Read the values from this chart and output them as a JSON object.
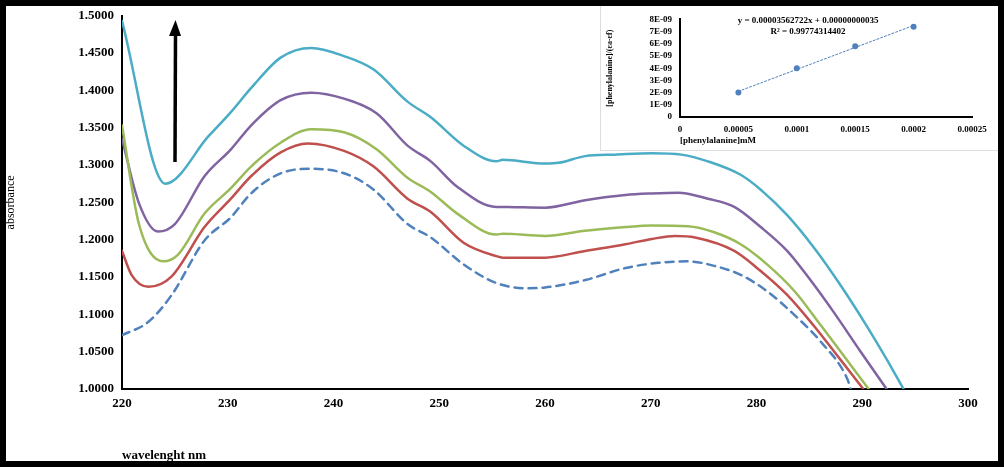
{
  "chart_data": [
    {
      "type": "line",
      "xlabel": "wavelenght nm",
      "ylabel": "absorbance",
      "xlim": [
        220,
        300
      ],
      "xticks": [
        220,
        230,
        240,
        250,
        260,
        270,
        280,
        290,
        300
      ],
      "ylim": [
        1.0,
        1.5
      ],
      "yticks": [
        {
          "value": 1.0,
          "label": "1.0000"
        },
        {
          "value": 1.05,
          "label": "1.0500"
        },
        {
          "value": 1.1,
          "label": "1.1000"
        },
        {
          "value": 1.15,
          "label": "1.1500"
        },
        {
          "value": 1.2,
          "label": "1.2000"
        },
        {
          "value": 1.25,
          "label": "1.2500"
        },
        {
          "value": 1.3,
          "label": "1.3000"
        },
        {
          "value": 1.35,
          "label": "1.3500"
        },
        {
          "value": 1.4,
          "label": "1.4000"
        },
        {
          "value": 1.45,
          "label": "1.4500"
        },
        {
          "value": 1.5,
          "label": "1.5000"
        }
      ],
      "marker": "none",
      "series": [
        {
          "color": "#4f81bd",
          "line_style": "dashed",
          "x": [
            220,
            222.5,
            224.7,
            227.8,
            230.3,
            232.2,
            235,
            237.9,
            241,
            243.8,
            247,
            249.2,
            252.3,
            255.4,
            258.2,
            260,
            263.8,
            267.6,
            270.7,
            273.5,
            276,
            278.5,
            281,
            283.6,
            286.1,
            288.6,
            288.9
          ],
          "values": [
            1.072,
            1.09,
            1.126,
            1.199,
            1.23,
            1.262,
            1.289,
            1.295,
            1.289,
            1.267,
            1.221,
            1.203,
            1.167,
            1.142,
            1.135,
            1.136,
            1.146,
            1.162,
            1.169,
            1.171,
            1.165,
            1.153,
            1.131,
            1.099,
            1.063,
            1.013,
            1.0
          ]
        },
        {
          "color": "#c0504d",
          "line_style": "solid",
          "x": [
            220,
            220.9,
            222.5,
            224.7,
            227.8,
            230.3,
            232.2,
            235,
            237.6,
            241,
            243.8,
            247,
            249.2,
            252.3,
            255.4,
            256,
            260,
            263.8,
            267.6,
            270.1,
            272.3,
            274.2,
            277.9,
            280.4,
            282.9,
            285.4,
            287.9,
            290.1
          ],
          "values": [
            1.185,
            1.153,
            1.137,
            1.151,
            1.217,
            1.255,
            1.285,
            1.317,
            1.329,
            1.319,
            1.298,
            1.255,
            1.237,
            1.196,
            1.178,
            1.176,
            1.176,
            1.185,
            1.194,
            1.201,
            1.205,
            1.203,
            1.185,
            1.158,
            1.126,
            1.085,
            1.04,
            1.0
          ]
        },
        {
          "color": "#9bbb59",
          "line_style": "solid",
          "x": [
            220,
            221.6,
            223.9,
            225.3,
            227.8,
            230.3,
            232.2,
            235,
            237.9,
            241,
            244.1,
            247,
            249.2,
            251.7,
            255.4,
            256,
            260,
            263.8,
            267.6,
            270.1,
            273.5,
            276,
            278.5,
            281,
            283.6,
            286.1,
            288.6,
            290.6
          ],
          "values": [
            1.353,
            1.221,
            1.171,
            1.18,
            1.235,
            1.269,
            1.298,
            1.33,
            1.348,
            1.344,
            1.321,
            1.283,
            1.264,
            1.235,
            1.207,
            1.208,
            1.205,
            1.212,
            1.217,
            1.219,
            1.218,
            1.21,
            1.194,
            1.167,
            1.131,
            1.085,
            1.038,
            1.0
          ]
        },
        {
          "color": "#8064a2",
          "line_style": "solid",
          "x": [
            220,
            221.6,
            223.4,
            225,
            227.8,
            230.3,
            232.2,
            235,
            237.9,
            241,
            244.1,
            247,
            249.2,
            251.7,
            255.4,
            256,
            260,
            263.8,
            267.6,
            270.1,
            272.6,
            275.4,
            277.9,
            280.4,
            282.9,
            285.1,
            287.3,
            289.8,
            292.3
          ],
          "values": [
            1.335,
            1.249,
            1.211,
            1.221,
            1.285,
            1.321,
            1.353,
            1.387,
            1.397,
            1.389,
            1.369,
            1.326,
            1.305,
            1.271,
            1.244,
            1.244,
            1.243,
            1.253,
            1.26,
            1.262,
            1.263,
            1.255,
            1.244,
            1.217,
            1.185,
            1.146,
            1.103,
            1.051,
            1.0
          ]
        },
        {
          "color": "#4bacc6",
          "line_style": "solid",
          "x": [
            220,
            224.1,
            228.2,
            230.3,
            232.2,
            235,
            237.9,
            241,
            243.8,
            247,
            249.2,
            252.3,
            255.4,
            256,
            260,
            261.3,
            263.8,
            266.6,
            270.1,
            272.9,
            275.4,
            278.5,
            280.4,
            282.9,
            285.4,
            287.9,
            290.4,
            292.3,
            293.9
          ],
          "values": [
            1.493,
            1.275,
            1.339,
            1.371,
            1.403,
            1.444,
            1.457,
            1.446,
            1.428,
            1.385,
            1.364,
            1.326,
            1.305,
            1.307,
            1.302,
            1.303,
            1.312,
            1.314,
            1.316,
            1.314,
            1.305,
            1.287,
            1.267,
            1.233,
            1.19,
            1.14,
            1.085,
            1.04,
            1.0
          ]
        }
      ]
    },
    {
      "type": "scatter",
      "xlabel": "[phenylalanine]mM",
      "ylabel": "[phenylalanine]/(εa-εf)",
      "annotations": [
        "y = 0.00003562722x + 0.00000000035",
        "R² = 0.99774314402"
      ],
      "xlim": [
        0,
        0.00025
      ],
      "xticks": [
        0,
        {
          "value": 5e-05,
          "label": "0.00005"
        },
        {
          "value": 0.0001,
          "label": "0.0001"
        },
        {
          "value": 0.00015,
          "label": "0.00015"
        },
        {
          "value": 0.0002,
          "label": "0.0002"
        },
        {
          "value": 0.00025,
          "label": "0.00025"
        }
      ],
      "ylim": [
        0,
        8e-09
      ],
      "yticks": [
        0,
        {
          "value": 1e-09,
          "label": "1E-09"
        },
        {
          "value": 2e-09,
          "label": "2E-09"
        },
        {
          "value": 3e-09,
          "label": "3E-09"
        },
        {
          "value": 4e-09,
          "label": "4E-09"
        },
        {
          "value": 5e-09,
          "label": "5E-09"
        },
        {
          "value": 6e-09,
          "label": "6E-09"
        },
        {
          "value": 7e-09,
          "label": "7E-09"
        },
        {
          "value": 8e-09,
          "label": "8E-09"
        }
      ],
      "series": [
        {
          "type": "line",
          "color": "#4f81bd",
          "line_style": "dotted",
          "marker": "none",
          "x": [
            5e-05,
            0.0002
          ],
          "values": [
            2.1e-09,
            7.5e-09
          ]
        },
        {
          "type": "scatter",
          "color": "#4f81bd",
          "marker": "circle",
          "x": [
            5e-05,
            0.0001,
            0.00015,
            0.0002
          ],
          "values": [
            2e-09,
            4e-09,
            5.8e-09,
            7.4e-09
          ]
        }
      ]
    }
  ]
}
